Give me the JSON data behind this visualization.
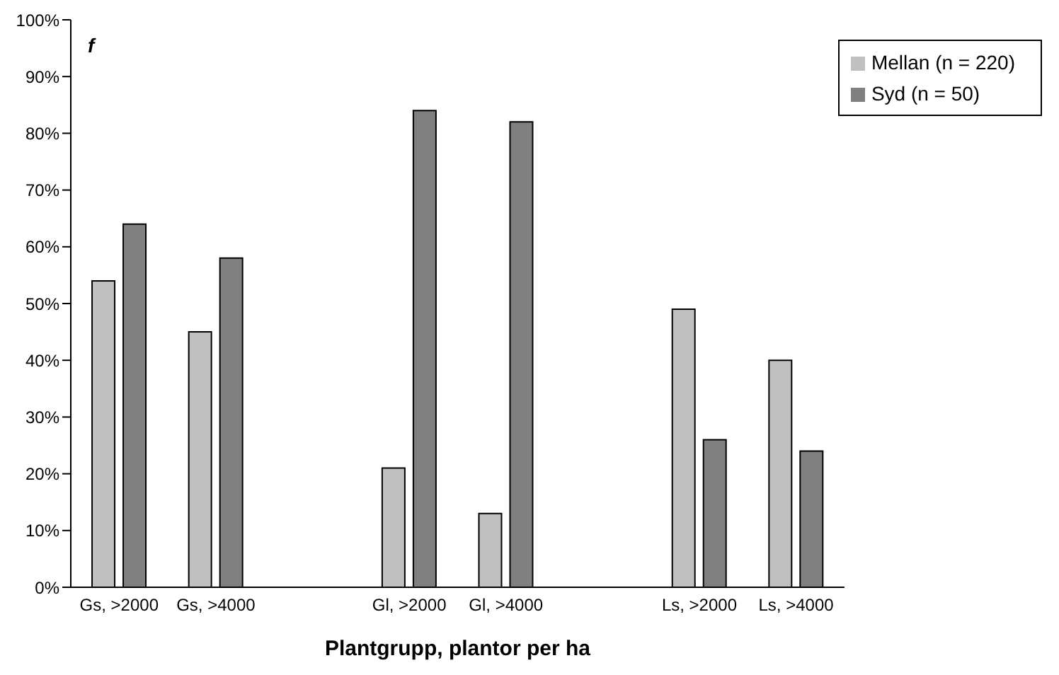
{
  "chart_data": {
    "type": "bar",
    "xlabel": "Plantgrupp, plantor per ha",
    "annotations": [
      "f"
    ],
    "categories": [
      "Gs, >2000",
      "Gs, >4000",
      null,
      "Gl, >2000",
      "Gl, >4000",
      null,
      "Ls, >2000",
      "Ls, >4000"
    ],
    "series": [
      {
        "name": "Mellan (n = 220)",
        "color": "#c0c0c0",
        "values": [
          54,
          45,
          null,
          21,
          13,
          null,
          49,
          40
        ]
      },
      {
        "name": "Syd (n = 50)",
        "color": "#808080",
        "values": [
          64,
          58,
          null,
          84,
          82,
          null,
          26,
          24
        ]
      }
    ],
    "ylim": [
      0,
      100
    ],
    "yticks": [
      {
        "value": 0,
        "label": "0%"
      },
      {
        "value": 10,
        "label": "10%"
      },
      {
        "value": 20,
        "label": "20%"
      },
      {
        "value": 30,
        "label": "30%"
      },
      {
        "value": 40,
        "label": "40%"
      },
      {
        "value": 50,
        "label": "50%"
      },
      {
        "value": 60,
        "label": "60%"
      },
      {
        "value": 70,
        "label": "70%"
      },
      {
        "value": 80,
        "label": "80%"
      },
      {
        "value": 90,
        "label": "90%"
      },
      {
        "value": 100,
        "label": "100%"
      }
    ],
    "grid": false,
    "legend": "top right"
  }
}
